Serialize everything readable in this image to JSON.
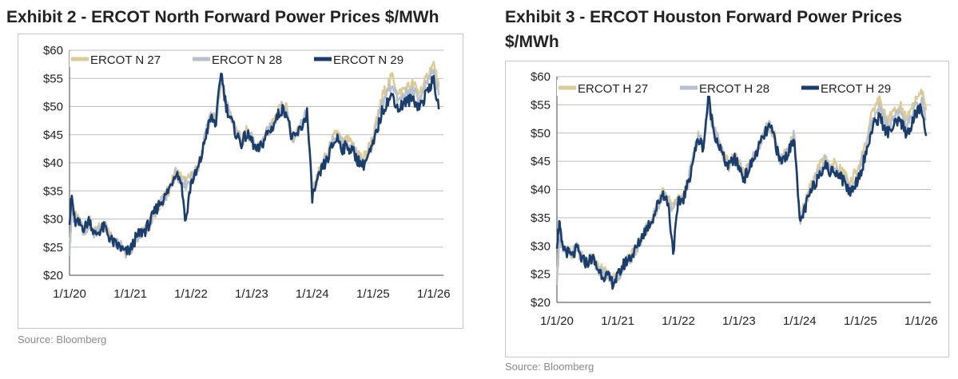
{
  "colors": {
    "series_27": "#dccb97",
    "series_28": "#b7c0cc",
    "series_29": "#1b3d6b",
    "grid": "#bdbdbd",
    "axis": "#444444",
    "text": "#222222",
    "source": "#8a8a8a"
  },
  "chart_data": [
    {
      "type": "line",
      "title": "Exhibit 2 - ERCOT North Forward Power Prices $/MWh",
      "source": "Source: Bloomberg",
      "ylim": [
        20,
        60
      ],
      "y_ticks": [
        20,
        25,
        30,
        35,
        40,
        45,
        50,
        55,
        60
      ],
      "y_tick_labels": [
        "$20",
        "$25",
        "$30",
        "$35",
        "$40",
        "$45",
        "$50",
        "$55",
        "$60"
      ],
      "xlim": [
        "2020-01-01",
        "2026-03-01"
      ],
      "x_tick_labels": [
        "1/1/20",
        "1/1/21",
        "1/1/22",
        "1/1/23",
        "1/1/24",
        "1/1/25",
        "1/1/26"
      ],
      "x_ticks": [
        "2020-01-01",
        "2021-01-01",
        "2022-01-01",
        "2023-01-01",
        "2024-01-01",
        "2025-01-01",
        "2026-01-01"
      ],
      "grid": "horizontal",
      "legend_placement": "top-left",
      "x": [
        "2020-01-01",
        "2020-01-15",
        "2020-02-01",
        "2020-03-01",
        "2020-04-01",
        "2020-05-01",
        "2020-06-01",
        "2020-07-01",
        "2020-08-01",
        "2020-09-01",
        "2020-10-01",
        "2020-11-01",
        "2020-12-01",
        "2021-01-01",
        "2021-02-01",
        "2021-03-01",
        "2021-04-01",
        "2021-05-01",
        "2021-06-01",
        "2021-07-01",
        "2021-08-01",
        "2021-09-01",
        "2021-10-01",
        "2021-11-01",
        "2021-12-01",
        "2022-01-01",
        "2022-02-01",
        "2022-03-01",
        "2022-04-01",
        "2022-05-01",
        "2022-06-01",
        "2022-07-01",
        "2022-08-01",
        "2022-09-01",
        "2022-10-01",
        "2022-11-01",
        "2022-12-01",
        "2023-01-01",
        "2023-02-01",
        "2023-03-01",
        "2023-04-01",
        "2023-05-01",
        "2023-06-01",
        "2023-07-01",
        "2023-08-01",
        "2023-09-01",
        "2023-10-01",
        "2023-11-01",
        "2023-12-01",
        "2024-01-01",
        "2024-02-01",
        "2024-03-01",
        "2024-04-01",
        "2024-05-01",
        "2024-06-01",
        "2024-07-01",
        "2024-08-01",
        "2024-09-01",
        "2024-10-01",
        "2024-11-01",
        "2024-12-01",
        "2025-01-01",
        "2025-02-01",
        "2025-03-01",
        "2025-04-01",
        "2025-05-01",
        "2025-06-01",
        "2025-07-01",
        "2025-08-01",
        "2025-09-01",
        "2025-10-01",
        "2025-11-01",
        "2025-12-01",
        "2026-01-01",
        "2026-02-01"
      ],
      "series": [
        {
          "name": "ERCOT N 27",
          "values": [
            24.5,
            31.5,
            30.5,
            29.5,
            28.0,
            29.5,
            27.5,
            28.5,
            29.0,
            27.0,
            26.0,
            25.5,
            24.5,
            24.5,
            26.5,
            27.5,
            28.0,
            29.5,
            31.5,
            33.0,
            34.0,
            36.0,
            38.5,
            37.5,
            36.5,
            37.5,
            38.5,
            41.0,
            45.5,
            48.5,
            47.5,
            55.0,
            50.5,
            48.0,
            45.5,
            44.0,
            45.5,
            44.5,
            42.5,
            43.5,
            45.5,
            46.5,
            48.5,
            50.0,
            49.5,
            44.5,
            45.5,
            47.0,
            49.5,
            34.5,
            37.5,
            40.0,
            41.5,
            44.0,
            45.5,
            43.5,
            44.0,
            43.0,
            42.0,
            40.5,
            42.5,
            44.5,
            48.5,
            52.0,
            54.0,
            55.5,
            52.0,
            53.0,
            53.5,
            54.0,
            52.5,
            53.5,
            56.0,
            57.5,
            53.5
          ]
        },
        {
          "name": "ERCOT N 28",
          "values": [
            24.2,
            31.2,
            30.2,
            29.2,
            27.7,
            29.2,
            27.2,
            28.2,
            28.7,
            26.7,
            25.7,
            25.2,
            24.2,
            24.3,
            26.3,
            27.3,
            27.8,
            29.3,
            31.3,
            32.8,
            33.8,
            35.8,
            38.2,
            37.2,
            36.2,
            37.2,
            38.2,
            40.8,
            45.3,
            48.3,
            47.3,
            54.8,
            50.3,
            47.8,
            45.3,
            43.8,
            45.3,
            44.3,
            42.3,
            43.3,
            45.3,
            46.3,
            48.3,
            49.8,
            49.3,
            44.3,
            45.3,
            46.8,
            49.3,
            34.3,
            37.0,
            39.5,
            41.0,
            43.5,
            45.0,
            43.0,
            43.5,
            42.5,
            41.2,
            39.8,
            41.5,
            43.5,
            47.5,
            50.8,
            52.8,
            54.0,
            50.8,
            51.8,
            52.3,
            52.8,
            51.3,
            52.3,
            54.8,
            56.0,
            52.0
          ]
        },
        {
          "name": "ERCOT N 29",
          "values": [
            30.0,
            34.0,
            29.5,
            29.0,
            28.5,
            30.0,
            27.0,
            28.0,
            28.5,
            26.5,
            25.5,
            25.0,
            24.0,
            24.5,
            26.5,
            27.5,
            28.0,
            29.5,
            31.5,
            33.0,
            34.0,
            36.0,
            38.5,
            37.0,
            29.5,
            36.5,
            38.0,
            40.5,
            45.0,
            48.0,
            47.0,
            56.5,
            50.0,
            47.5,
            45.0,
            43.5,
            45.0,
            44.0,
            42.0,
            43.0,
            45.0,
            46.0,
            48.0,
            49.5,
            49.0,
            44.0,
            45.0,
            46.5,
            49.0,
            34.0,
            36.5,
            39.0,
            40.5,
            43.0,
            44.5,
            42.5,
            43.0,
            42.0,
            40.5,
            39.5,
            41.0,
            43.0,
            46.5,
            49.5,
            51.0,
            52.0,
            49.5,
            50.5,
            51.0,
            51.5,
            50.0,
            51.0,
            53.5,
            54.5,
            49.5
          ]
        }
      ]
    },
    {
      "type": "line",
      "title": "Exhibit 3 - ERCOT Houston Forward Power Prices $/MWh",
      "source": "Source: Bloomberg",
      "ylim": [
        20,
        60
      ],
      "y_ticks": [
        20,
        25,
        30,
        35,
        40,
        45,
        50,
        55,
        60
      ],
      "y_tick_labels": [
        "$20",
        "$25",
        "$30",
        "$35",
        "$40",
        "$45",
        "$50",
        "$55",
        "$60"
      ],
      "xlim": [
        "2020-01-01",
        "2026-03-01"
      ],
      "x_tick_labels": [
        "1/1/20",
        "1/1/21",
        "1/1/22",
        "1/1/23",
        "1/1/24",
        "1/1/25",
        "1/1/26"
      ],
      "x_ticks": [
        "2020-01-01",
        "2021-01-01",
        "2022-01-01",
        "2023-01-01",
        "2024-01-01",
        "2025-01-01",
        "2026-01-01"
      ],
      "grid": "horizontal",
      "legend_placement": "top-left",
      "x": [
        "2020-01-01",
        "2020-01-15",
        "2020-02-01",
        "2020-03-01",
        "2020-04-01",
        "2020-05-01",
        "2020-06-01",
        "2020-07-01",
        "2020-08-01",
        "2020-09-01",
        "2020-10-01",
        "2020-11-01",
        "2020-12-01",
        "2021-01-01",
        "2021-02-01",
        "2021-03-01",
        "2021-04-01",
        "2021-05-01",
        "2021-06-01",
        "2021-07-01",
        "2021-08-01",
        "2021-09-01",
        "2021-10-01",
        "2021-11-01",
        "2021-12-01",
        "2022-01-01",
        "2022-02-01",
        "2022-03-01",
        "2022-04-01",
        "2022-05-01",
        "2022-06-01",
        "2022-07-01",
        "2022-08-01",
        "2022-09-01",
        "2022-10-01",
        "2022-11-01",
        "2022-12-01",
        "2023-01-01",
        "2023-02-01",
        "2023-03-01",
        "2023-04-01",
        "2023-05-01",
        "2023-06-01",
        "2023-07-01",
        "2023-08-01",
        "2023-09-01",
        "2023-10-01",
        "2023-11-01",
        "2023-12-01",
        "2024-01-01",
        "2024-02-01",
        "2024-03-01",
        "2024-04-01",
        "2024-05-01",
        "2024-06-01",
        "2024-07-01",
        "2024-08-01",
        "2024-09-01",
        "2024-10-01",
        "2024-11-01",
        "2024-12-01",
        "2025-01-01",
        "2025-02-01",
        "2025-03-01",
        "2025-04-01",
        "2025-05-01",
        "2025-06-01",
        "2025-07-01",
        "2025-08-01",
        "2025-09-01",
        "2025-10-01",
        "2025-11-01",
        "2025-12-01",
        "2026-01-01",
        "2026-02-01"
      ],
      "series": [
        {
          "name": "ERCOT H 27",
          "values": [
            24.0,
            31.5,
            30.5,
            29.5,
            28.5,
            30.0,
            28.0,
            27.5,
            28.5,
            26.5,
            25.5,
            25.0,
            24.0,
            24.5,
            26.5,
            27.5,
            28.5,
            30.0,
            32.0,
            33.5,
            35.0,
            37.5,
            39.5,
            38.0,
            37.0,
            38.0,
            39.0,
            41.5,
            46.0,
            49.5,
            48.0,
            55.0,
            51.0,
            48.5,
            46.0,
            44.5,
            46.0,
            44.5,
            42.5,
            44.0,
            46.0,
            48.0,
            50.0,
            51.5,
            50.0,
            45.5,
            46.0,
            47.5,
            50.0,
            34.5,
            37.5,
            40.0,
            42.0,
            44.0,
            45.5,
            44.0,
            44.5,
            43.5,
            42.5,
            41.0,
            43.0,
            45.0,
            48.0,
            52.0,
            55.0,
            56.0,
            52.5,
            53.0,
            54.0,
            54.5,
            52.5,
            53.5,
            56.5,
            57.5,
            54.0
          ]
        },
        {
          "name": "ERCOT H 28",
          "values": [
            23.8,
            31.2,
            30.2,
            29.2,
            28.2,
            29.7,
            27.7,
            27.2,
            28.2,
            26.2,
            25.2,
            24.7,
            23.8,
            24.3,
            26.3,
            27.3,
            28.3,
            29.8,
            31.8,
            33.3,
            34.8,
            37.3,
            39.3,
            37.8,
            36.8,
            37.8,
            38.8,
            41.3,
            45.8,
            49.3,
            47.8,
            54.8,
            50.8,
            48.3,
            45.8,
            44.3,
            45.8,
            44.3,
            42.3,
            43.8,
            45.8,
            47.8,
            49.8,
            51.3,
            49.8,
            45.3,
            45.8,
            47.3,
            49.8,
            34.3,
            37.0,
            39.5,
            41.5,
            43.5,
            45.0,
            43.5,
            44.0,
            43.0,
            41.8,
            40.3,
            42.0,
            44.0,
            47.0,
            50.8,
            53.5,
            54.5,
            51.2,
            51.8,
            52.8,
            53.3,
            51.3,
            52.3,
            55.0,
            56.0,
            52.5
          ]
        },
        {
          "name": "ERCOT H 29",
          "values": [
            30.5,
            34.0,
            30.0,
            29.0,
            28.0,
            29.5,
            27.5,
            27.0,
            28.0,
            26.0,
            25.0,
            24.5,
            23.5,
            24.5,
            26.5,
            27.5,
            28.5,
            30.0,
            32.0,
            33.5,
            35.0,
            37.5,
            39.5,
            37.5,
            29.0,
            37.5,
            38.5,
            41.0,
            45.5,
            49.0,
            47.5,
            56.5,
            50.5,
            48.0,
            45.5,
            44.0,
            45.5,
            44.0,
            42.0,
            43.5,
            45.5,
            47.5,
            49.5,
            51.0,
            49.5,
            45.0,
            45.5,
            47.0,
            49.5,
            34.0,
            36.5,
            39.0,
            41.0,
            43.0,
            44.5,
            43.0,
            43.5,
            42.5,
            41.0,
            39.5,
            41.0,
            43.0,
            46.0,
            49.5,
            52.0,
            53.0,
            50.0,
            50.5,
            51.5,
            52.0,
            50.0,
            51.0,
            53.5,
            54.5,
            49.5
          ]
        }
      ]
    }
  ]
}
